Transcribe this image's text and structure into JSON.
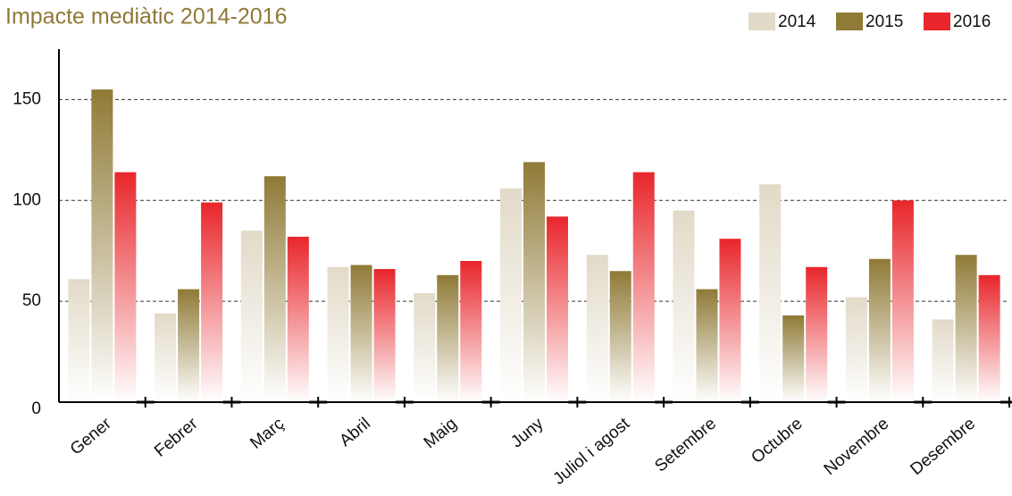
{
  "chart_data": {
    "type": "bar",
    "title": "Impacte mediàtic 2014-2016",
    "categories": [
      "Gener",
      "Febrer",
      "Març",
      "Abril",
      "Maig",
      "Juny",
      "Juliol i agost",
      "Setembre",
      "Octubre",
      "Novembre",
      "Desembre"
    ],
    "series": [
      {
        "name": "2014",
        "color": "#e2dac8",
        "values": [
          61,
          44,
          85,
          67,
          54,
          106,
          73,
          95,
          108,
          52,
          41
        ]
      },
      {
        "name": "2015",
        "color": "#8f7a36",
        "values": [
          155,
          56,
          112,
          68,
          63,
          119,
          65,
          56,
          43,
          71,
          73
        ]
      },
      {
        "name": "2016",
        "color": "#e8262b",
        "values": [
          114,
          99,
          82,
          66,
          70,
          92,
          114,
          81,
          67,
          100,
          63
        ]
      }
    ],
    "ylim": [
      0,
      175
    ],
    "yticks": [
      0,
      50,
      100,
      150
    ],
    "grid": true,
    "legend": "top-right"
  }
}
